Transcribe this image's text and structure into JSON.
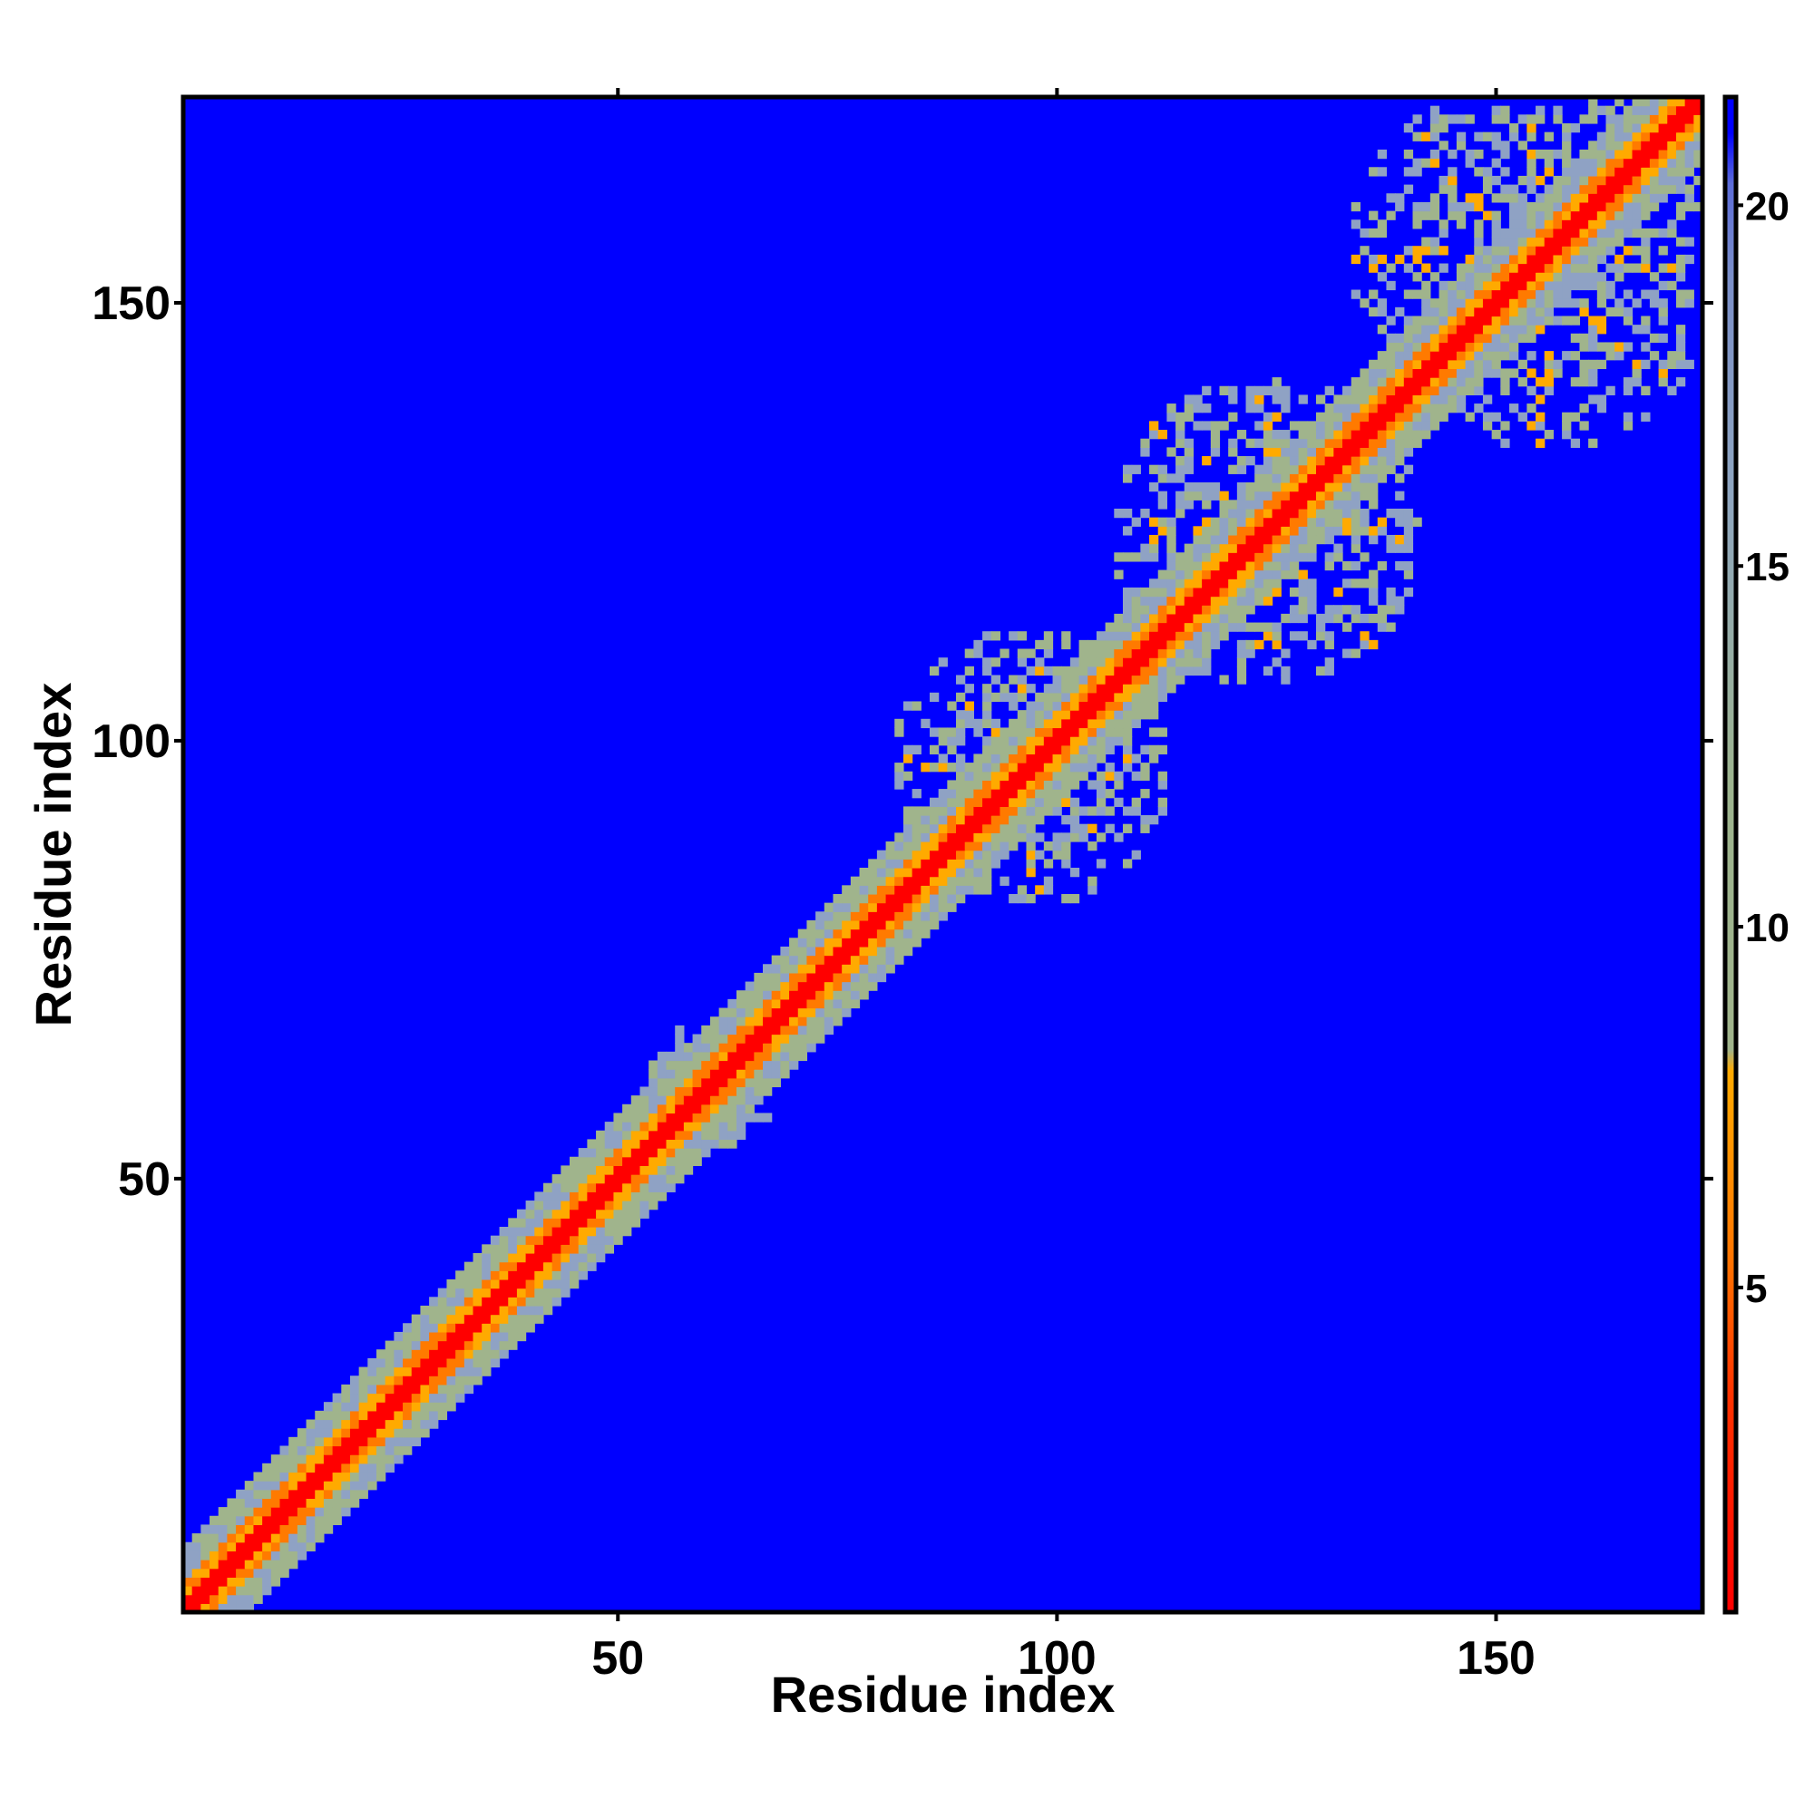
{
  "chart_data": {
    "type": "heatmap",
    "title": "",
    "xlabel": "Residue index",
    "ylabel": "Residue index",
    "n_residues": 173,
    "xlim": [
      1,
      173
    ],
    "ylim": [
      1,
      173
    ],
    "x_ticks": [
      50,
      100,
      150
    ],
    "y_ticks": [
      50,
      100,
      150
    ],
    "colorbar": {
      "ticks": [
        5,
        10,
        15,
        20
      ],
      "range": [
        0.5,
        21.5
      ],
      "stops": [
        {
          "value": 0.5,
          "color": "#ff0000"
        },
        {
          "value": 3.5,
          "color": "#ff3300"
        },
        {
          "value": 5.5,
          "color": "#ff7700"
        },
        {
          "value": 8.0,
          "color": "#ffaa00"
        },
        {
          "value": 8.3,
          "color": "#a0b48c"
        },
        {
          "value": 12.0,
          "color": "#9db48f"
        },
        {
          "value": 16.0,
          "color": "#8fa6c0"
        },
        {
          "value": 19.0,
          "color": "#7b8fc8"
        },
        {
          "value": 20.3,
          "color": "#5c6cd8"
        },
        {
          "value": 21.0,
          "color": "#0000ff"
        },
        {
          "value": 21.5,
          "color": "#0000ff"
        }
      ]
    },
    "cell_colors": {
      "diagonal": "#ff0000",
      "near": "#ff7a00",
      "orange": "#ffaa00",
      "green": "#a0b48c",
      "slate": "#8fa2c4",
      "background": "#0000ff"
    },
    "cutoff_distance": 21,
    "diagonal_band_width": 7,
    "contact_clusters": [
      {
        "center_x": 60,
        "center_y": 60,
        "radius": 8,
        "density": 0.8
      },
      {
        "center_x": 97,
        "center_y": 97,
        "radius": 16,
        "density": 0.75
      },
      {
        "center_x": 124,
        "center_y": 124,
        "radius": 18,
        "density": 0.7
      },
      {
        "center_x": 155,
        "center_y": 155,
        "radius": 22,
        "density": 0.65
      }
    ]
  }
}
